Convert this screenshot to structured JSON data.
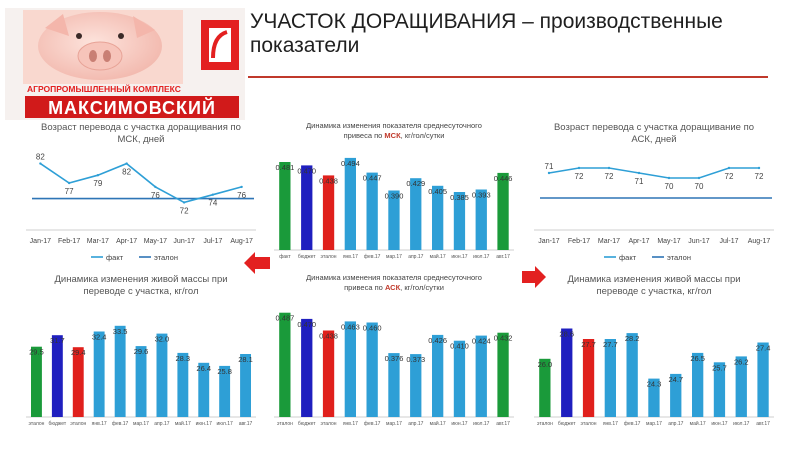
{
  "header": {
    "title": "УЧАСТОК ДОРАЩИВАНИЯ – производственные показатели"
  },
  "logo": {
    "subtitle": "АГРОПРОМЫШЛЕННЫЙ КОМПЛЕКС",
    "name": "МАКСИМОВСКИЙ"
  },
  "colors": {
    "series_blue": "#2e9fd6",
    "fact_green": "#1a9a3a",
    "budget_blue": "#1f1fbf",
    "benchmark_red": "#e0201c",
    "line_fact": "#2e9fd6",
    "line_benchmark": "#2e75b6",
    "accent_red": "#c0392b"
  },
  "chart_data": [
    {
      "id": "age-msk",
      "type": "line",
      "title": "Возраст перевода с участка доращивания по МСК, дней",
      "categories": [
        "Jan-17",
        "Feb-17",
        "Mar-17",
        "Apr-17",
        "May-17",
        "Jun-17",
        "Jul-17",
        "Aug-17"
      ],
      "series": [
        {
          "name": "факт",
          "values": [
            82,
            77,
            79,
            82,
            76,
            72,
            74,
            76
          ],
          "labels": [
            "82",
            "77",
            "79",
            "82",
            "76",
            "72",
            "74",
            "76"
          ]
        },
        {
          "name": "эталон",
          "values": [
            73,
            73,
            73,
            73,
            73,
            73,
            73,
            73
          ]
        }
      ],
      "ylim": [
        68,
        86
      ],
      "legend": [
        "факт",
        "эталон"
      ]
    },
    {
      "id": "gain-msk",
      "type": "bar",
      "title": "Динамика изменения показателя среднесуточного привеса по МСК, кг/гол/сутки",
      "title_parts": {
        "before": "Динамика изменения показателя среднесуточного привеса по ",
        "hl": "МСК",
        "after": ", кг/гол/сутки"
      },
      "categories": [
        "факт",
        "бюджет",
        "эталон",
        "янв.17",
        "фев.17",
        "мар.17",
        "апр.17",
        "май.17",
        "июн.17",
        "июл.17",
        "авг.17"
      ],
      "values": [
        0.481,
        0.47,
        0.438,
        0.494,
        0.447,
        0.39,
        0.429,
        0.405,
        0.385,
        0.393,
        0.446
      ],
      "labels": [
        "0.481",
        "0.470",
        "0.438",
        "0.494",
        "0.447",
        "0.390",
        "0.429",
        "0.405",
        "0.385",
        "0.393",
        "0.446"
      ],
      "ylim": [
        0.2,
        0.5
      ]
    },
    {
      "id": "age-ask",
      "type": "line",
      "title": "Возраст перевода с участка доращивание по АСК, дней",
      "categories": [
        "Jan-17",
        "Feb-17",
        "Mar-17",
        "Apr-17",
        "May-17",
        "Jun-17",
        "Jul-17",
        "Aug-17"
      ],
      "series": [
        {
          "name": "факт",
          "values": [
            71,
            72,
            72,
            71,
            70,
            70,
            72,
            72
          ],
          "labels": [
            "71",
            "72",
            "72",
            "71",
            "70",
            "70",
            "72",
            "72"
          ]
        },
        {
          "name": "эталон",
          "values": [
            66,
            66,
            66,
            66,
            66,
            66,
            66,
            66
          ]
        }
      ],
      "ylim": [
        62,
        76
      ],
      "legend": [
        "факт",
        "эталон"
      ]
    },
    {
      "id": "mass-msk",
      "type": "bar",
      "title": "Динамика изменения живой массы при переводе с участка, кг/гол",
      "categories": [
        "эталон",
        "бюджет",
        "эталон",
        "янв.17",
        "фев.17",
        "мар.17",
        "апр.17",
        "май.17",
        "июн.17",
        "июл.17",
        "авг.17"
      ],
      "values": [
        29.5,
        31.7,
        29.4,
        32.4,
        33.5,
        29.6,
        32.0,
        28.3,
        26.4,
        25.8,
        28.1
      ],
      "labels": [
        "29.5",
        "31.7",
        "29.4",
        "32.4",
        "33.5",
        "29.6",
        "32.0",
        "28.3",
        "26.4",
        "25.8",
        "28.1"
      ],
      "ylim": [
        16,
        35
      ]
    },
    {
      "id": "gain-ask",
      "type": "bar",
      "title": "Динамика изменения показателя среднесуточного привеса по АСК, кг/гол/сутки",
      "title_parts": {
        "before": "Динамика изменения показателя среднесуточного привеса по ",
        "hl": "АСК",
        "after": ", кг/гол/сутки"
      },
      "categories": [
        "эталон",
        "бюджет",
        "эталон",
        "янв.17",
        "фев.17",
        "мар.17",
        "апр.17",
        "май.17",
        "июн.17",
        "июл.17",
        "авг.17"
      ],
      "values": [
        0.487,
        0.47,
        0.438,
        0.463,
        0.46,
        0.376,
        0.373,
        0.426,
        0.41,
        0.424,
        0.432
      ],
      "labels": [
        "0.487",
        "0.470",
        "0.438",
        "0.463",
        "0.460",
        "0.376",
        "0.373",
        "0.426",
        "0.410",
        "0.424",
        "0.432"
      ],
      "ylim": [
        0.2,
        0.5
      ]
    },
    {
      "id": "mass-ask",
      "type": "bar",
      "title": "Динамика изменения живой массы при переводе с участка, кг/гол",
      "categories": [
        "эталон",
        "бюджет",
        "эталон",
        "янв.17",
        "фев.17",
        "мар.17",
        "апр.17",
        "май.17",
        "июн.17",
        "июл.17",
        "авг.17"
      ],
      "values": [
        26.0,
        28.6,
        27.7,
        27.7,
        28.2,
        24.3,
        24.7,
        26.5,
        25.7,
        26.2,
        27.4
      ],
      "labels": [
        "26.0",
        "28.6",
        "27.7",
        "27.7",
        "28.2",
        "24.3",
        "24.7",
        "26.5",
        "25.7",
        "26.2",
        "27.4"
      ],
      "ylim": [
        21,
        29.5
      ]
    }
  ]
}
